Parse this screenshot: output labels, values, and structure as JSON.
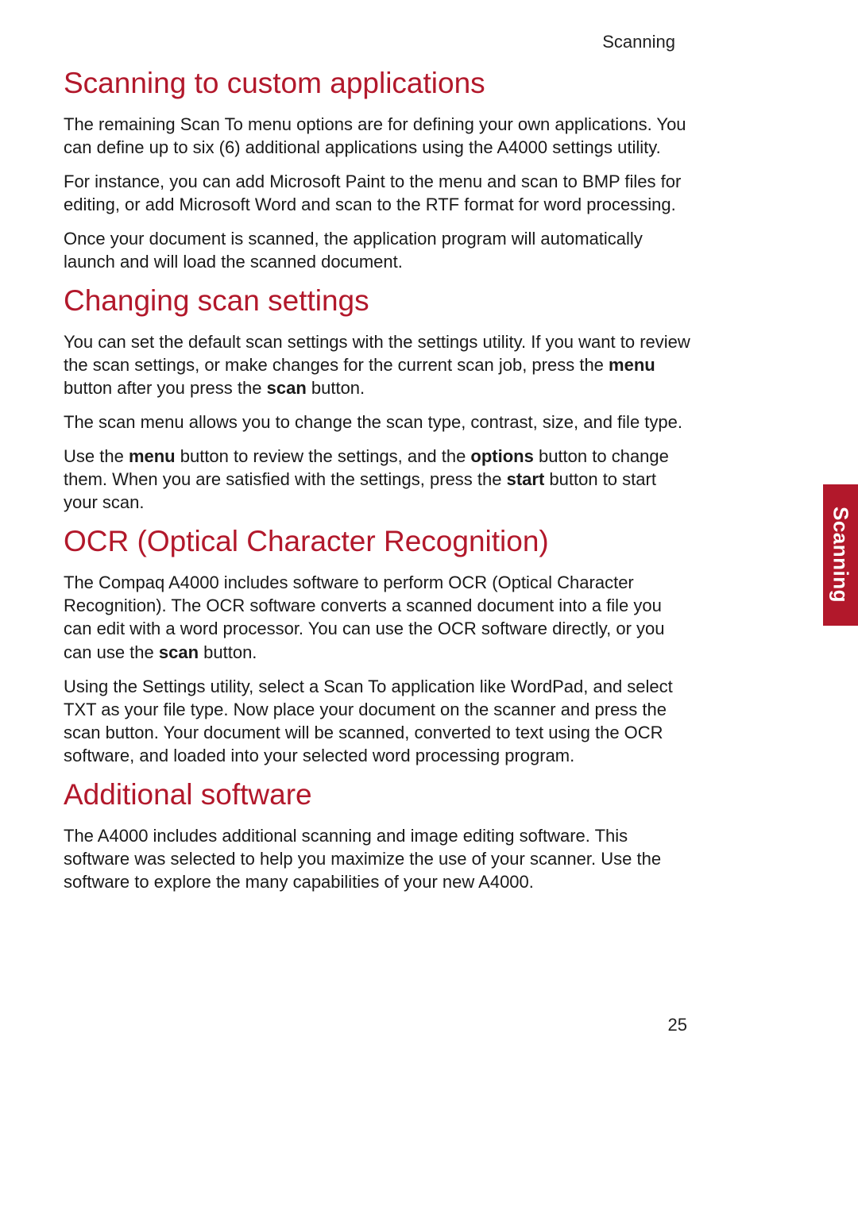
{
  "colors": {
    "heading": "#b2182b",
    "body_text": "#1a1a1a",
    "tab_bg": "#b2182b",
    "tab_text": "#ffffff",
    "page_bg": "#ffffff"
  },
  "typography": {
    "heading_fontsize_pt": 28,
    "body_fontsize_pt": 16,
    "heading_weight": 400,
    "body_weight": 400,
    "bold_weight": 700
  },
  "running_head": "Scanning",
  "side_tab": "Scanning",
  "page_number": "25",
  "sections": {
    "s1": {
      "title": "Scanning to custom applications",
      "p1": "The remaining Scan To menu options are for defining your own applications. You can define up to six (6) additional applications using the A4000 settings utility.",
      "p2": "For instance, you can add Microsoft Paint to the menu and scan to BMP files for editing, or add Microsoft Word and scan to the RTF format for word processing.",
      "p3": "Once your document is scanned, the application program will automatically launch and will load the scanned document."
    },
    "s2": {
      "title": "Changing scan settings",
      "p1a": "You can set the default scan settings with the settings utility. If you want to review the scan settings, or make changes for the current scan job, press the ",
      "p1b": "menu",
      "p1c": " button after you press the ",
      "p1d": "scan",
      "p1e": " button.",
      "p2": "The scan menu allows you to change the scan type, contrast, size, and file type.",
      "p3a": "Use the ",
      "p3b": "menu",
      "p3c": " button to review the settings, and the ",
      "p3d": "options",
      "p3e": " button to change them. When you are satisfied with the settings, press the ",
      "p3f": "start",
      "p3g": " button to start your scan."
    },
    "s3": {
      "title": "OCR (Optical Character Recognition)",
      "p1a": "The Compaq A4000 includes software to perform OCR (Optical Character Recognition). The OCR software converts a scanned document into a file you can edit with a word processor. You can use the OCR software directly, or you can use the ",
      "p1b": "scan",
      "p1c": " button.",
      "p2": "Using the Settings utility, select a Scan To application like WordPad, and select TXT as your file type. Now place your document on the scanner and press the scan button. Your document will be scanned, converted to text using the OCR software, and loaded into your selected word processing program."
    },
    "s4": {
      "title": "Additional software",
      "p1": "The A4000 includes additional scanning and image editing software. This software was selected to help you maximize the use of your scanner. Use the software to explore the many capabilities of your new A4000."
    }
  }
}
